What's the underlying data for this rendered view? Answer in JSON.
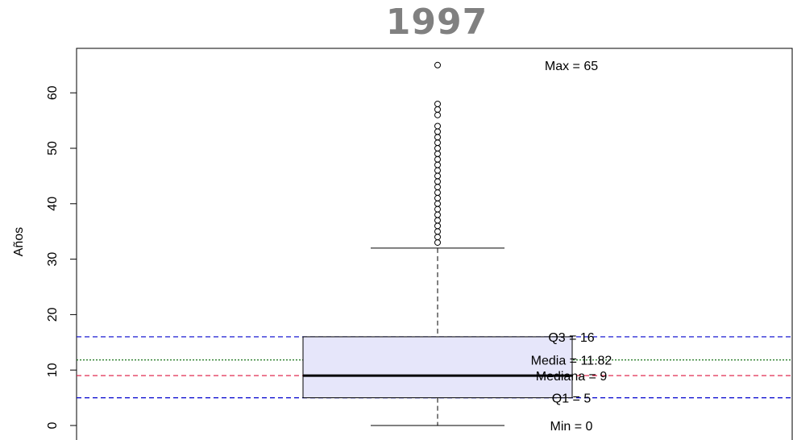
{
  "chart_data": {
    "type": "box",
    "title": "1997",
    "ylabel": "Años",
    "xlabel": "",
    "ylim": [
      -1.5,
      69
    ],
    "yticks": [
      0,
      10,
      20,
      30,
      40,
      50,
      60
    ],
    "box": {
      "q1": 5,
      "median": 9,
      "q3": 16,
      "whisker_low": 0,
      "whisker_high": 32,
      "mean": 11.82,
      "fill": "#e6e6fa"
    },
    "outliers": [
      33,
      34,
      35,
      36,
      37,
      38,
      39,
      40,
      41,
      42,
      43,
      44,
      45,
      46,
      47,
      48,
      49,
      50,
      51,
      52,
      53,
      54,
      56,
      57,
      58,
      65
    ],
    "reference_lines": [
      {
        "value": 16,
        "color": "#0000cd",
        "style": "dashed"
      },
      {
        "value": 11.82,
        "color": "#006400",
        "style": "dotted"
      },
      {
        "value": 9,
        "color": "#dc143c",
        "style": "dashed"
      },
      {
        "value": 5,
        "color": "#0000cd",
        "style": "dashed"
      }
    ],
    "annotations": [
      {
        "text": "Max = 65",
        "value": 65
      },
      {
        "text": "Q3 = 16",
        "value": 16
      },
      {
        "text": "Media = 11.82",
        "value": 11.82
      },
      {
        "text": "Mediana = 9",
        "value": 9
      },
      {
        "text": "Q1 = 5",
        "value": 5
      },
      {
        "text": "Min = 0",
        "value": 0
      }
    ]
  }
}
